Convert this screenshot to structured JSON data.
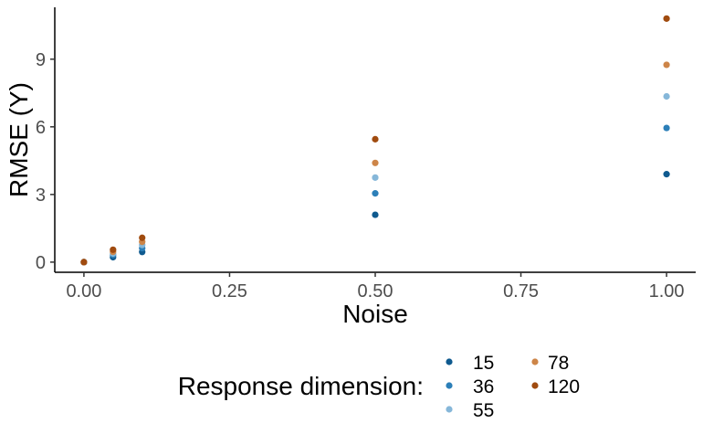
{
  "chart_data": {
    "type": "scatter",
    "xlabel": "Noise",
    "ylabel": "RMSE (Y)",
    "xlim": [
      -0.05,
      1.05
    ],
    "ylim": [
      -0.45,
      11.3
    ],
    "xticks": [
      0.0,
      0.25,
      0.5,
      0.75,
      1.0
    ],
    "xtick_labels": [
      "0.00",
      "0.25",
      "0.50",
      "0.75",
      "1.00"
    ],
    "yticks": [
      0,
      3,
      6,
      9
    ],
    "ytick_labels": [
      "0",
      "3",
      "6",
      "9"
    ],
    "grid": false,
    "legend": {
      "title": "Response dimension:",
      "placement": "bottom"
    },
    "x": [
      0.0,
      0.05,
      0.1,
      0.5,
      1.0
    ],
    "series": [
      {
        "name": "15",
        "color": "#0f5a8f",
        "values": [
          0.0,
          0.22,
          0.45,
          2.1,
          3.9
        ]
      },
      {
        "name": "36",
        "color": "#2c7fb8",
        "values": [
          0.0,
          0.32,
          0.62,
          3.05,
          5.95
        ]
      },
      {
        "name": "55",
        "color": "#86b7d9",
        "values": [
          0.0,
          0.38,
          0.76,
          3.75,
          7.35
        ]
      },
      {
        "name": "78",
        "color": "#cd8548",
        "values": [
          0.0,
          0.46,
          0.9,
          4.4,
          8.75
        ]
      },
      {
        "name": "120",
        "color": "#a04b0f",
        "values": [
          0.0,
          0.55,
          1.08,
          5.45,
          10.8
        ]
      }
    ]
  }
}
